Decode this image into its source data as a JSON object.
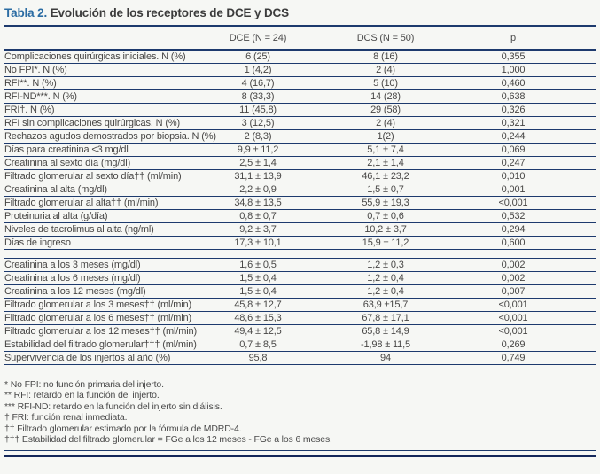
{
  "title": {
    "label": "Tabla 2.",
    "text": "Evolución de los receptores de DCE y DCS"
  },
  "table": {
    "columns": [
      "",
      "DCE (N = 24)",
      "DCS (N = 50)",
      "p"
    ],
    "sections": [
      {
        "rows": [
          [
            "Complicaciones quirúrgicas iniciales. N (%)",
            "6 (25)",
            "8 (16)",
            "0,355"
          ],
          [
            "No FPI*. N (%)",
            "1 (4,2)",
            "2 (4)",
            "1,000"
          ],
          [
            "RFI**. N (%)",
            "4 (16,7)",
            "5 (10)",
            "0,460"
          ],
          [
            "RFI-ND***. N (%)",
            "8 (33,3)",
            "14 (28)",
            "0,638"
          ],
          [
            "FRI†. N (%)",
            "11 (45,8)",
            "29 (58)",
            "0,326"
          ],
          [
            "RFI sin complicaciones quirúrgicas. N (%)",
            "3 (12,5)",
            "2 (4)",
            "0,321"
          ],
          [
            "Rechazos agudos demostrados por biopsia. N (%)",
            "2 (8,3)",
            "1(2)",
            "0,244"
          ],
          [
            "Días para creatinina <3 mg/dl",
            "9,9 ± 11,2",
            "5,1 ± 7,4",
            "0,069"
          ],
          [
            "Creatinina al sexto día (mg/dl)",
            "2,5 ± 1,4",
            "2,1 ± 1,4",
            "0,247"
          ],
          [
            "Filtrado glomerular al sexto día†† (ml/min)",
            "31,1 ± 13,9",
            "46,1 ± 23,2",
            "0,010"
          ],
          [
            "Creatinina al alta (mg/dl)",
            "2,2 ± 0,9",
            "1,5 ± 0,7",
            "0,001"
          ],
          [
            "Filtrado glomerular al alta†† (ml/min)",
            "34,8 ± 13,5",
            "55,9 ± 19,3",
            "<0,001"
          ],
          [
            "Proteinuria al alta (g/día)",
            "0,8 ± 0,7",
            "0,7 ± 0,6",
            "0,532"
          ],
          [
            "Niveles de tacrolimus al alta (ng/ml)",
            "9,2 ± 3,7",
            "10,2 ± 3,7",
            "0,294"
          ],
          [
            "Días de ingreso",
            "17,3 ± 10,1",
            "15,9 ± 11,2",
            "0,600"
          ]
        ]
      },
      {
        "rows": [
          [
            "Creatinina a los 3 meses (mg/dl)",
            "1,6 ± 0,5",
            "1,2 ± 0,3",
            "0,002"
          ],
          [
            "Creatinina a los 6 meses (mg/dl)",
            "1,5 ± 0,4",
            "1,2 ± 0,4",
            "0,002"
          ],
          [
            "Creatinina a los 12 meses (mg/dl)",
            "1,5 ± 0,4",
            "1,2 ± 0,4",
            "0,007"
          ],
          [
            "Filtrado glomerular a los 3 meses†† (ml/min)",
            "45,8 ± 12,7",
            "63,9 ±15,7",
            "<0,001"
          ],
          [
            "Filtrado glomerular a los 6 meses†† (ml/min)",
            "48,6 ± 15,3",
            "67,8 ± 17,1",
            "<0,001"
          ],
          [
            "Filtrado glomerular a los 12 meses†† (ml/min)",
            "49,4 ± 12,5",
            "65,8 ± 14,9",
            "<0,001"
          ],
          [
            "Estabilidad del filtrado glomerular††† (ml/min)",
            "0,7 ± 8,5",
            "-1,98 ± 11,5",
            "0,269"
          ],
          [
            "Supervivencia de los injertos al año (%)",
            "95,8",
            "94",
            "0,749"
          ]
        ]
      }
    ]
  },
  "footnotes": [
    "* No FPI: no función primaria del injerto.",
    "** RFI: retardo en la función del injerto.",
    "*** RFI-ND: retardo en la función del injerto sin diálisis.",
    "† FRI: función renal inmediata.",
    "†† Filtrado glomerular estimado por la fórmula de MDRD-4.",
    "††† Estabilidad del filtrado glomerular = FGe a los 12 meses - FGe a los 6 meses."
  ],
  "colors": {
    "accent_blue": "#2b6ca3",
    "line_navy": "#1d3a6d",
    "bottom_bar": "#14275a",
    "text": "#474645"
  }
}
